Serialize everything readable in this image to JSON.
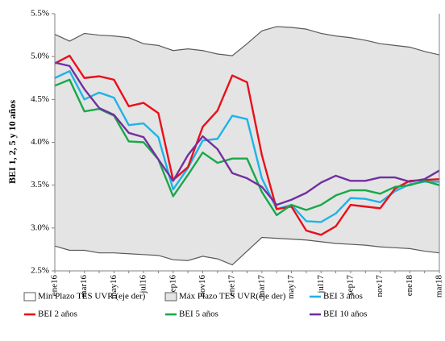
{
  "chart_data": {
    "type": "line",
    "ylabel": "BEI 1, 2, 5 y 10 años",
    "categories": [
      "ene16",
      null,
      "mar16",
      null,
      "may16",
      null,
      "jul16",
      null,
      "sep16",
      null,
      "nov16",
      null,
      "ene17",
      null,
      "mar17",
      null,
      "may17",
      null,
      "jul17",
      null,
      "sep17",
      null,
      "nov17",
      null,
      "ene18",
      null,
      "mar18"
    ],
    "ylim": [
      2.5,
      5.5
    ],
    "yticks": [
      {
        "value": 2.5,
        "label": "2.5%"
      },
      {
        "value": 3.0,
        "label": "3.0%"
      },
      {
        "value": 3.5,
        "label": "3.5%"
      },
      {
        "value": 4.0,
        "label": "4.0%"
      },
      {
        "value": 4.5,
        "label": "4.5%"
      },
      {
        "value": 5.0,
        "label": "5.0%"
      },
      {
        "value": 5.5,
        "label": "5.5%"
      }
    ],
    "series": [
      {
        "name": "Mín Plazo TES UVR (eje der)",
        "style": "area",
        "color": "#ffffff",
        "edge": "#595959",
        "values": [
          2.79,
          2.74,
          2.74,
          2.71,
          2.71,
          2.7,
          2.69,
          2.68,
          2.63,
          2.62,
          2.67,
          2.64,
          2.57,
          2.73,
          2.89,
          2.88,
          2.87,
          2.86,
          2.84,
          2.82,
          2.81,
          2.8,
          2.78,
          2.77,
          2.76,
          2.73,
          2.71
        ]
      },
      {
        "name": "Máx Plazo TES UVR(eje der)",
        "style": "area",
        "color": "#e4e4e4",
        "edge": "#595959",
        "values": [
          5.26,
          5.18,
          5.27,
          5.25,
          5.24,
          5.22,
          5.15,
          5.13,
          5.07,
          5.09,
          5.07,
          5.03,
          5.01,
          5.15,
          5.3,
          5.35,
          5.34,
          5.32,
          5.27,
          5.24,
          5.22,
          5.19,
          5.15,
          5.13,
          5.11,
          5.06,
          5.02
        ]
      },
      {
        "name": "BEI 3 años",
        "style": "line",
        "color": "#1fb3e8",
        "values": [
          4.75,
          4.83,
          4.5,
          4.58,
          4.52,
          4.2,
          4.22,
          4.06,
          3.45,
          3.7,
          4.02,
          4.04,
          4.31,
          4.27,
          3.58,
          3.22,
          3.27,
          3.08,
          3.07,
          3.17,
          3.35,
          3.34,
          3.3,
          3.43,
          3.51,
          3.54,
          3.54
        ]
      },
      {
        "name": "BEI 2 años",
        "style": "line",
        "color": "#e8101a",
        "values": [
          4.92,
          5.01,
          4.75,
          4.77,
          4.73,
          4.42,
          4.46,
          4.34,
          3.56,
          3.71,
          4.18,
          4.37,
          4.78,
          4.7,
          3.85,
          3.22,
          3.25,
          2.97,
          2.92,
          3.02,
          3.27,
          3.25,
          3.23,
          3.46,
          3.55,
          3.56,
          3.57
        ]
      },
      {
        "name": "BEI 5 años",
        "style": "line",
        "color": "#18a84a",
        "values": [
          4.66,
          4.73,
          4.36,
          4.39,
          4.31,
          4.01,
          4.0,
          3.8,
          3.37,
          3.62,
          3.88,
          3.76,
          3.81,
          3.81,
          3.42,
          3.15,
          3.27,
          3.21,
          3.27,
          3.38,
          3.44,
          3.44,
          3.4,
          3.48,
          3.5,
          3.55,
          3.5
        ]
      },
      {
        "name": "BEI 10 años",
        "style": "line",
        "color": "#7030a0",
        "values": [
          4.93,
          4.89,
          4.62,
          4.4,
          4.32,
          4.11,
          4.06,
          3.8,
          3.55,
          3.85,
          4.07,
          3.92,
          3.64,
          3.58,
          3.48,
          3.27,
          3.33,
          3.41,
          3.53,
          3.61,
          3.55,
          3.55,
          3.59,
          3.59,
          3.54,
          3.57,
          3.67
        ]
      }
    ]
  }
}
